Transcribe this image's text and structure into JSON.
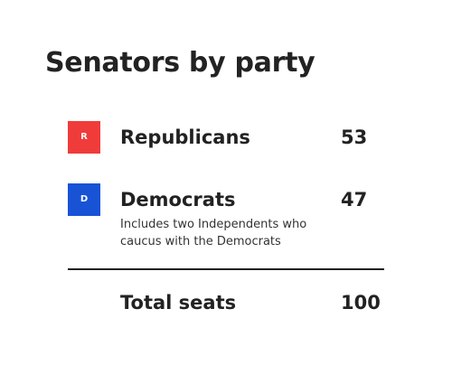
{
  "title": "Senators by party",
  "parties": [
    {
      "badge": "R",
      "name": "Republicans",
      "seats": "53",
      "note": "",
      "color": "#f03b3b"
    },
    {
      "badge": "D",
      "name": "Democrats",
      "seats": "47",
      "note": "Includes two Independents who caucus with the Democrats",
      "color": "#1853d6"
    }
  ],
  "total": {
    "label": "Total seats",
    "value": "100"
  }
}
